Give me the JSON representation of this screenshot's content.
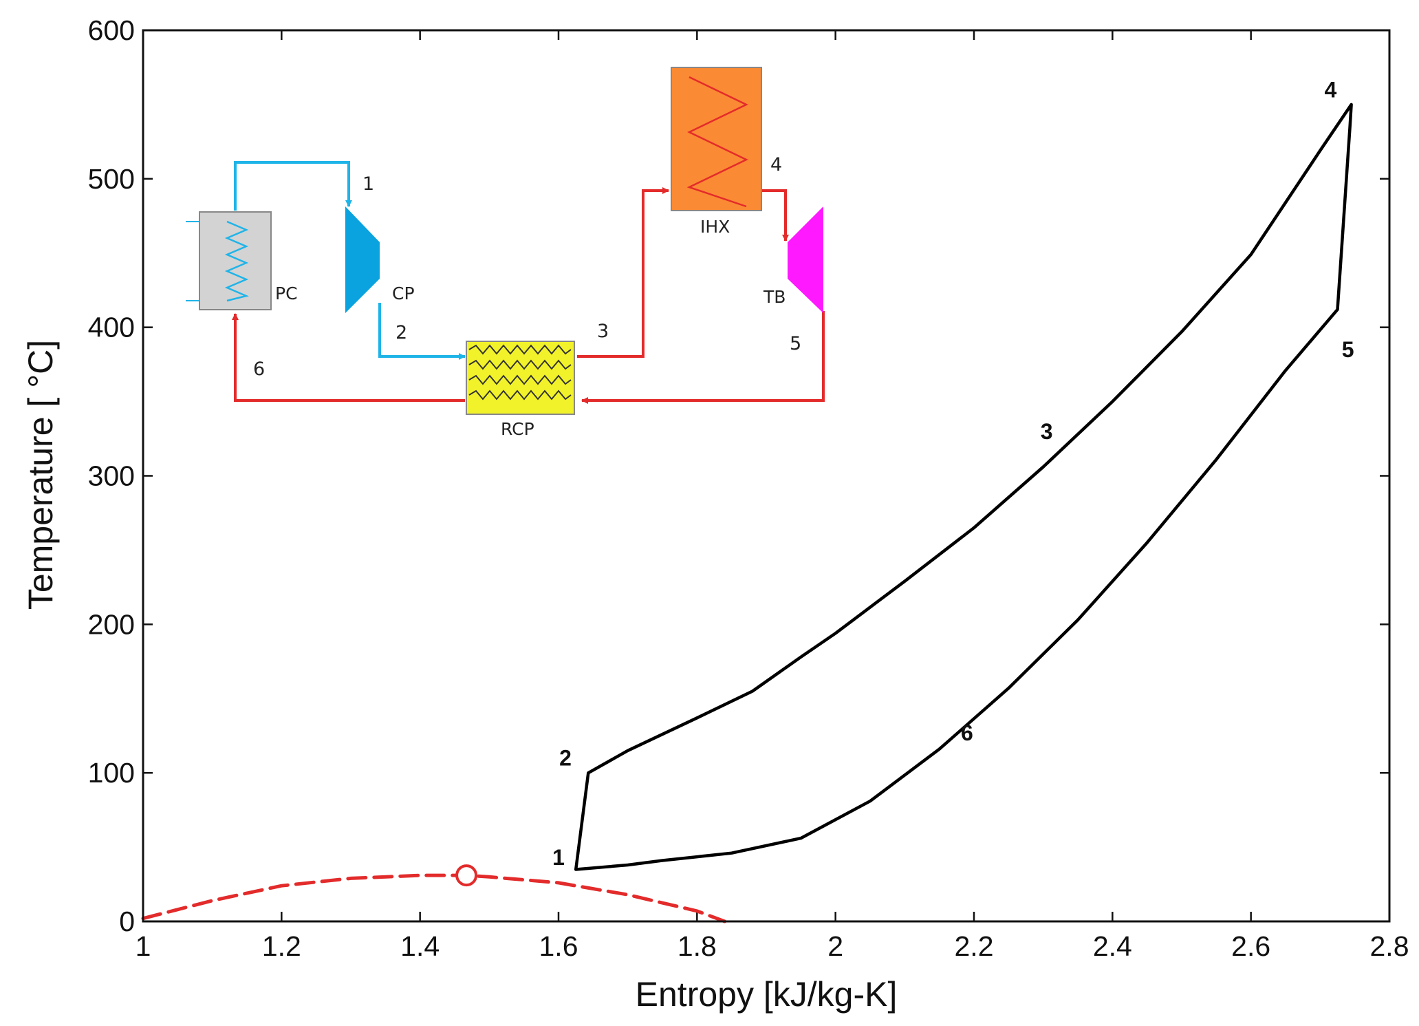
{
  "chart_data": {
    "type": "line",
    "title": "",
    "xlabel": "Entropy [kJ/kg-K]",
    "ylabel": "Temperature [ °C]",
    "xlim": [
      1,
      2.8
    ],
    "ylim": [
      0,
      600
    ],
    "xticks": [
      "1",
      "1.2",
      "1.4",
      "1.6",
      "1.8",
      "2",
      "2.2",
      "2.4",
      "2.6",
      "2.8"
    ],
    "yticks": [
      "0",
      "100",
      "200",
      "300",
      "400",
      "500",
      "600"
    ],
    "grid": false,
    "colors": {
      "cycle": "#000000",
      "dome": "#e32b2b"
    },
    "series": [
      {
        "name": "cycle",
        "x": [
          1.625,
          1.643,
          1.7,
          1.8,
          1.88,
          1.95,
          2.0,
          2.1,
          2.2,
          2.3,
          2.4,
          2.5,
          2.6,
          2.7,
          2.745,
          2.743,
          2.725,
          2.65,
          2.55,
          2.45,
          2.35,
          2.25,
          2.15,
          2.05,
          1.95,
          1.85,
          1.75,
          1.7,
          1.625
        ],
        "y": [
          35,
          100,
          115,
          137,
          155,
          178,
          194,
          229,
          265,
          306,
          350,
          397,
          449,
          519,
          550,
          535,
          412,
          371,
          311,
          255,
          203,
          157,
          116,
          81,
          56,
          46,
          41,
          38,
          35
        ]
      },
      {
        "name": "saturation dome",
        "style": "dashed",
        "x": [
          1.0,
          1.1,
          1.2,
          1.3,
          1.4,
          1.467,
          1.5,
          1.6,
          1.7,
          1.8,
          1.84
        ],
        "y": [
          2,
          14,
          24,
          29,
          31,
          31,
          30,
          26,
          18,
          7,
          0
        ]
      }
    ],
    "critical_point": {
      "x": 1.467,
      "y": 31
    },
    "state_points": [
      {
        "label": "1",
        "x": 1.6,
        "y": 43
      },
      {
        "label": "2",
        "x": 1.61,
        "y": 110
      },
      {
        "label": "3",
        "x": 2.305,
        "y": 330
      },
      {
        "label": "4",
        "x": 2.715,
        "y": 560
      },
      {
        "label": "5",
        "x": 2.74,
        "y": 385
      },
      {
        "label": "6",
        "x": 2.19,
        "y": 127
      }
    ]
  },
  "schematic": {
    "components": {
      "pc": "PC",
      "cp": "CP",
      "rcp": "RCP",
      "ihx": "IHX",
      "tb": "TB"
    },
    "numbers": [
      "1",
      "2",
      "3",
      "4",
      "5",
      "6"
    ],
    "colors": {
      "cold_line": "#1fb4e8",
      "hot_line": "#e32b2b",
      "pc_fill": "#d3d3d3",
      "cp_fill": "#0aa3df",
      "rcp_fill": "#f2f22a",
      "ihx_fill": "#fb8a34",
      "tb_fill": "#ff19ff"
    }
  }
}
